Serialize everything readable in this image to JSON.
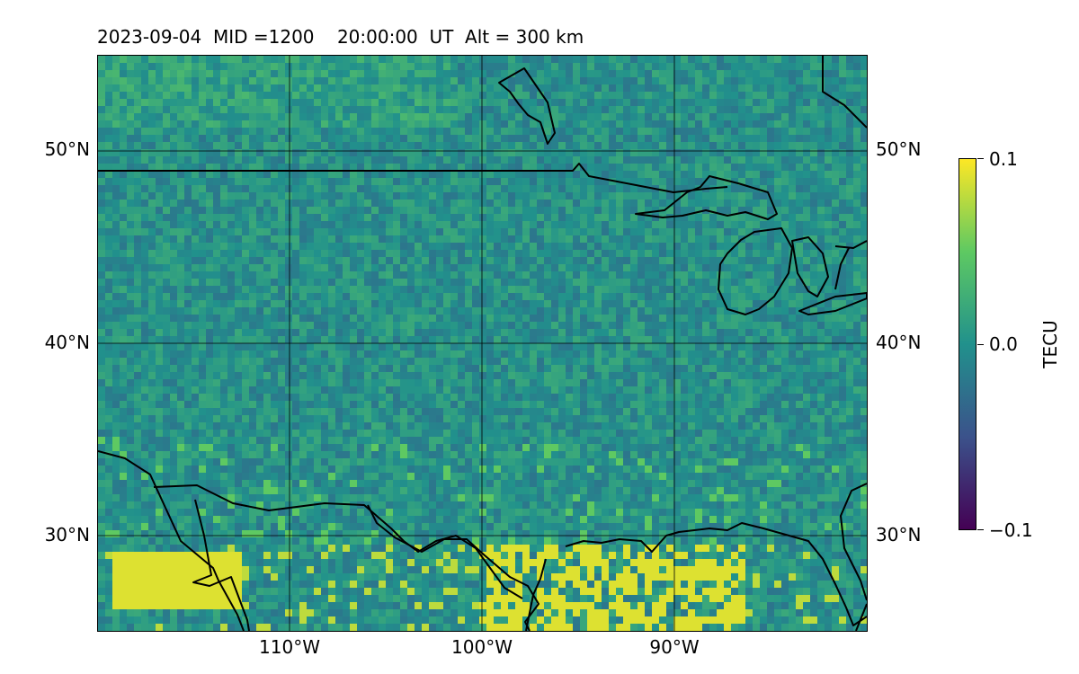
{
  "title": "2023-09-04  MID =1200    20:00:00  UT  Alt = 300 km",
  "map": {
    "lat_labels": [
      "50°N",
      "40°N",
      "30°N"
    ],
    "lon_labels": [
      "110°W",
      "100°W",
      "90°W"
    ],
    "lon_range": [
      -120,
      -80
    ],
    "lat_range": [
      25,
      55
    ]
  },
  "colorbar": {
    "label": "TECU",
    "ticks": [
      "0.1",
      "0.0",
      "−0.1"
    ],
    "range": [
      -0.1,
      0.1
    ],
    "colormap": "viridis"
  }
}
